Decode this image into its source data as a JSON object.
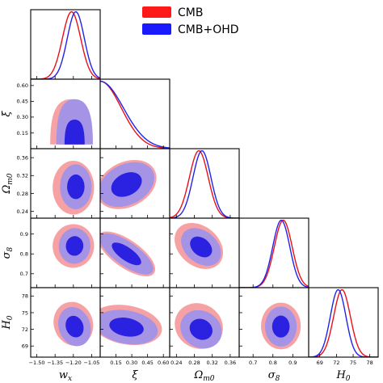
{
  "chart_data": {
    "type": "triangle-corner-plot",
    "legend": {
      "placement": "top-right",
      "entries": [
        {
          "name": "CMB",
          "color": "#ff1a1a"
        },
        {
          "name": "CMB+OHD",
          "color": "#1a1aff"
        }
      ]
    },
    "colors": {
      "cmb_outer": "#f6a2a4",
      "cmb_inner": "#ee5a62",
      "ohd_outer": "#a593e6",
      "ohd_inner": "#2a22e0",
      "cmb_line": "#e8101a",
      "ohd_line": "#2222e8"
    },
    "parameters": [
      {
        "symbol": "w",
        "sub": "x",
        "range": [
          -1.55,
          -0.98
        ],
        "ticks": [
          -1.5,
          -1.35,
          -1.2,
          -1.05
        ],
        "tick_labels": [
          "−1.50",
          "−1.35",
          "−1.20",
          "−1.05"
        ]
      },
      {
        "symbol": "ξ",
        "sub": "",
        "range": [
          0.0,
          0.66
        ],
        "ticks": [
          0.15,
          0.3,
          0.45,
          0.6
        ],
        "tick_labels": [
          "0.15",
          "0.30",
          "0.45",
          "0.60"
        ]
      },
      {
        "symbol": "Ω",
        "sub": "m0",
        "range": [
          0.225,
          0.38
        ],
        "ticks": [
          0.24,
          0.28,
          0.32,
          0.36
        ],
        "tick_labels": [
          "0.24",
          "0.28",
          "0.32",
          "0.36"
        ]
      },
      {
        "symbol": "σ",
        "sub": "8",
        "range": [
          0.63,
          0.98
        ],
        "ticks": [
          0.7,
          0.8,
          0.9
        ],
        "tick_labels": [
          "0.7",
          "0.8",
          "0.9"
        ]
      },
      {
        "symbol": "H",
        "sub": "0",
        "range": [
          67,
          79.5
        ],
        "ticks": [
          69,
          72,
          75,
          78
        ],
        "tick_labels": [
          "69",
          "72",
          "75",
          "78"
        ]
      }
    ],
    "marginals": [
      {
        "kind": "gaussian",
        "series": [
          {
            "name": "CMB",
            "mean": -1.215,
            "sigma": 0.075
          },
          {
            "name": "CMB+OHD",
            "mean": -1.18,
            "sigma": 0.07
          }
        ]
      },
      {
        "kind": "halfnormal",
        "series": [
          {
            "name": "CMB",
            "scale": 0.2
          },
          {
            "name": "CMB+OHD",
            "scale": 0.22
          }
        ]
      },
      {
        "kind": "gaussian",
        "series": [
          {
            "name": "CMB",
            "mean": 0.29,
            "sigma": 0.021
          },
          {
            "name": "CMB+OHD",
            "mean": 0.297,
            "sigma": 0.02
          }
        ]
      },
      {
        "kind": "gaussian",
        "series": [
          {
            "name": "CMB",
            "mean": 0.852,
            "sigma": 0.045
          },
          {
            "name": "CMB+OHD",
            "mean": 0.842,
            "sigma": 0.043
          }
        ]
      },
      {
        "kind": "gaussian",
        "series": [
          {
            "name": "CMB",
            "mean": 73.0,
            "sigma": 1.5
          },
          {
            "name": "CMB+OHD",
            "mean": 72.3,
            "sigma": 1.4
          }
        ]
      }
    ],
    "contours": [
      {
        "row": 1,
        "col": 0,
        "type": "triangle",
        "cmb": {
          "base": 0.04,
          "x_center": -1.22,
          "x_width": 0.17,
          "top": 0.47
        },
        "ohd": {
          "base": 0.04,
          "x_center": -1.19,
          "x_width": 0.15,
          "top": 0.47
        }
      },
      {
        "row": 2,
        "col": 0,
        "type": "ellipse",
        "cmb": {
          "center": [
            -1.2,
            0.293
          ],
          "axes": [
            0.17,
            0.06
          ],
          "angle": 0
        },
        "ohd": {
          "center": [
            -1.18,
            0.295
          ],
          "axes": [
            0.13,
            0.05
          ],
          "angle": 0
        }
      },
      {
        "row": 2,
        "col": 1,
        "type": "ellipse",
        "cmb": {
          "center": [
            0.25,
            0.3
          ],
          "axes": [
            0.3,
            0.05
          ],
          "angle": 27
        },
        "ohd": {
          "center": [
            0.25,
            0.3
          ],
          "axes": [
            0.28,
            0.045
          ],
          "angle": 27
        }
      },
      {
        "row": 3,
        "col": 0,
        "type": "ellipse",
        "cmb": {
          "center": [
            -1.2,
            0.84
          ],
          "axes": [
            0.17,
            0.11
          ],
          "angle": -5
        },
        "ohd": {
          "center": [
            -1.19,
            0.84
          ],
          "axes": [
            0.13,
            0.09
          ],
          "angle": -5
        }
      },
      {
        "row": 3,
        "col": 1,
        "type": "ellipse",
        "cmb": {
          "center": [
            0.25,
            0.8
          ],
          "axes": [
            0.32,
            0.07
          ],
          "angle": -35
        },
        "ohd": {
          "center": [
            0.25,
            0.8
          ],
          "axes": [
            0.3,
            0.06
          ],
          "angle": -35
        }
      },
      {
        "row": 3,
        "col": 2,
        "type": "ellipse",
        "cmb": {
          "center": [
            0.29,
            0.84
          ],
          "axes": [
            0.06,
            0.1
          ],
          "angle": -40
        },
        "ohd": {
          "center": [
            0.295,
            0.835
          ],
          "axes": [
            0.05,
            0.08
          ],
          "angle": -40
        }
      },
      {
        "row": 4,
        "col": 0,
        "type": "ellipse",
        "cmb": {
          "center": [
            -1.2,
            73.0
          ],
          "axes": [
            0.16,
            4.0
          ],
          "angle": 20
        },
        "ohd": {
          "center": [
            -1.19,
            72.5
          ],
          "axes": [
            0.13,
            3.6
          ],
          "angle": 20
        }
      },
      {
        "row": 4,
        "col": 1,
        "type": "ellipse",
        "cmb": {
          "center": [
            0.25,
            72.8
          ],
          "axes": [
            0.34,
            3.5
          ],
          "angle": -10
        },
        "ohd": {
          "center": [
            0.25,
            72.4
          ],
          "axes": [
            0.3,
            3.0
          ],
          "angle": -10
        }
      },
      {
        "row": 4,
        "col": 2,
        "type": "ellipse",
        "cmb": {
          "center": [
            0.29,
            72.6
          ],
          "axes": [
            0.055,
            4.0
          ],
          "angle": -30
        },
        "ohd": {
          "center": [
            0.295,
            72.0
          ],
          "axes": [
            0.048,
            3.3
          ],
          "angle": -30
        }
      },
      {
        "row": 4,
        "col": 3,
        "type": "ellipse",
        "cmb": {
          "center": [
            0.84,
            72.6
          ],
          "axes": [
            0.1,
            4.2
          ],
          "angle": 0
        },
        "ohd": {
          "center": [
            0.84,
            72.5
          ],
          "axes": [
            0.08,
            3.6
          ],
          "angle": 0
        }
      }
    ]
  }
}
